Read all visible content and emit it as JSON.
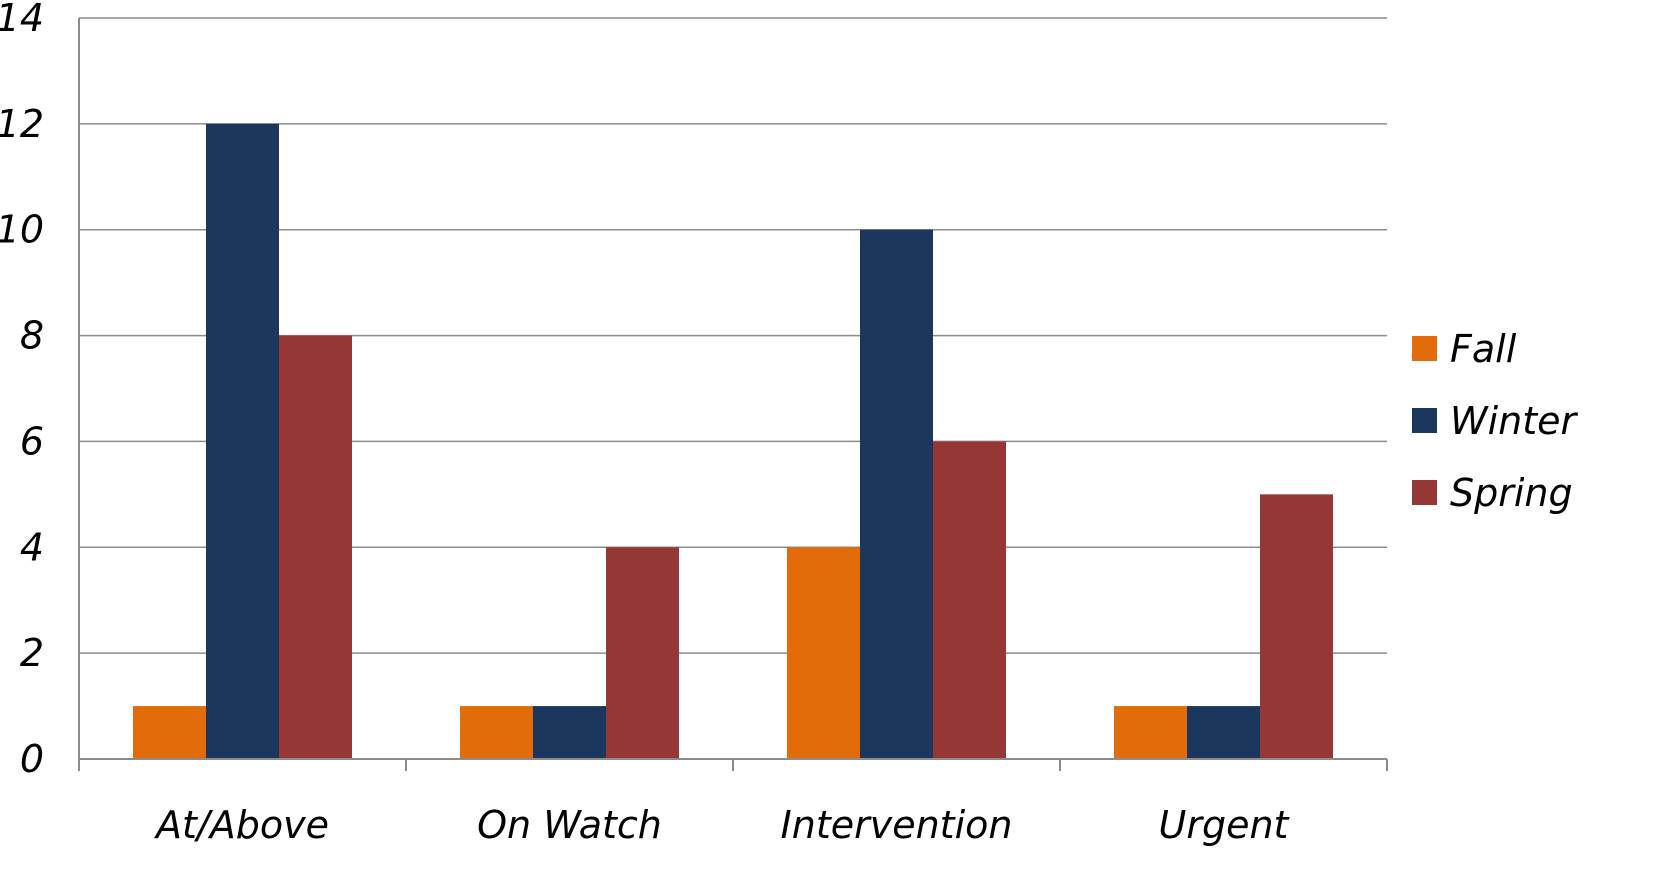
{
  "chart_data": {
    "type": "bar",
    "categories": [
      "At/Above",
      "On Watch",
      "Intervention",
      "Urgent"
    ],
    "series": [
      {
        "name": "Fall",
        "color": "#E36C0A",
        "values": [
          1,
          1,
          4,
          1
        ]
      },
      {
        "name": "Winter",
        "color": "#1B375D",
        "values": [
          12,
          1,
          10,
          1
        ]
      },
      {
        "name": "Spring",
        "color": "#953735",
        "values": [
          8,
          4,
          6,
          5
        ]
      }
    ],
    "ylim": [
      0,
      14
    ],
    "yticks": [
      "0",
      "2",
      "4",
      "6",
      "8",
      "10",
      "12",
      "14"
    ],
    "grid": true,
    "legend_position": "right"
  }
}
